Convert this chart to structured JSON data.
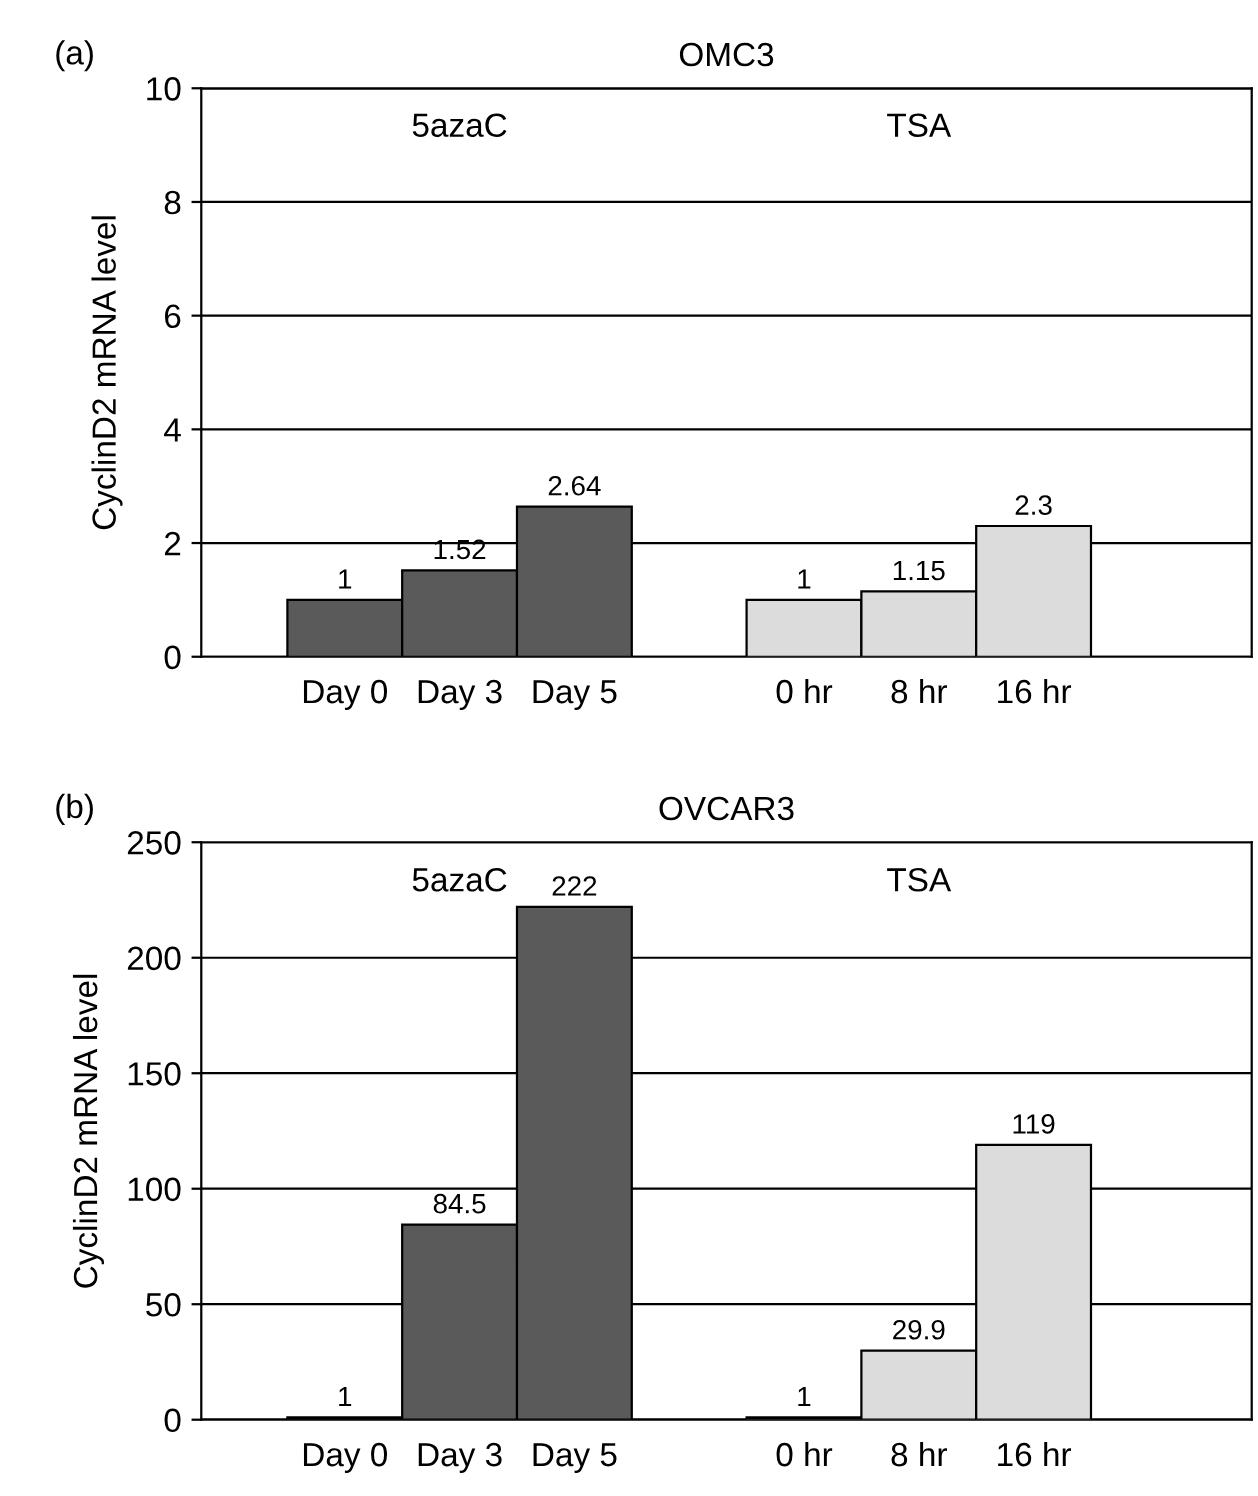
{
  "chart_data": [
    {
      "type": "bar",
      "title": "OMC3",
      "ylabel": "CyclinD2 mRNA level",
      "annotations": [
        "(a)",
        "5azaC",
        "TSA"
      ],
      "categories": [
        "Day 0",
        "Day 3",
        "Day 5",
        null,
        "0 hr",
        "8 hr",
        "16 hr"
      ],
      "values": [
        1,
        1.52,
        2.64,
        null,
        1,
        1.15,
        2.3
      ],
      "colors": [
        "#5a5a5a",
        "#5a5a5a",
        "#5a5a5a",
        null,
        "#dcdcdc",
        "#dcdcdc",
        "#dcdcdc"
      ],
      "data_labels": true,
      "ylim": [
        0,
        10
      ],
      "yticks": [
        0,
        2,
        4,
        6,
        8,
        10
      ],
      "grid": "y"
    },
    {
      "type": "bar",
      "title": "OVCAR3",
      "ylabel": "CyclinD2 mRNA level",
      "annotations": [
        "(b)",
        "5azaC",
        "TSA"
      ],
      "categories": [
        "Day 0",
        "Day 3",
        "Day 5",
        null,
        "0 hr",
        "8 hr",
        "16 hr"
      ],
      "values": [
        1,
        84.5,
        222,
        null,
        1,
        29.9,
        119
      ],
      "colors": [
        "#5a5a5a",
        "#5a5a5a",
        "#5a5a5a",
        null,
        "#dcdcdc",
        "#dcdcdc",
        "#dcdcdc"
      ],
      "data_labels": true,
      "ylim": [
        0,
        250
      ],
      "yticks": [
        0,
        50,
        100,
        150,
        200,
        250
      ],
      "grid": "y"
    }
  ]
}
